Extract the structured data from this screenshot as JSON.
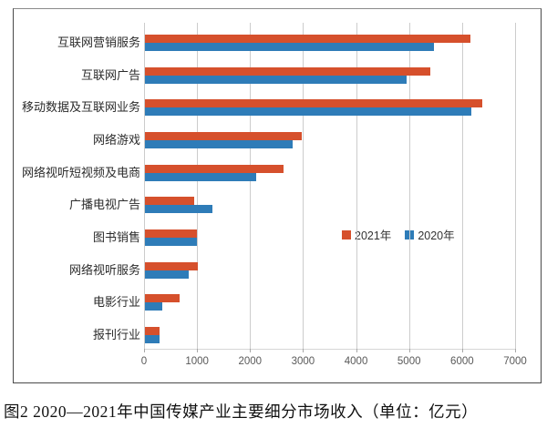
{
  "page": {
    "caption": "图2 2020—2021年中国传媒产业主要细分市场收入（单位：亿元）"
  },
  "legend": {
    "items": [
      {
        "label": "2021年",
        "color": "#d6502c"
      },
      {
        "label": "2020年",
        "color": "#2e7cb8"
      }
    ]
  },
  "chart_data": {
    "type": "bar",
    "orientation": "horizontal",
    "title": "图2 2020—2021年中国传媒产业主要细分市场收入（单位：亿元）",
    "unit": "亿元",
    "categories": [
      "互联网营销服务",
      "互联网广告",
      "移动数据及互联网业务",
      "网络游戏",
      "网络视听短视频及电商",
      "广播电视广告",
      "图书销售",
      "网络视听服务",
      "电影行业",
      "报刊行业"
    ],
    "series": [
      {
        "name": "2021年",
        "color": "#d6502c",
        "values": [
          6140,
          5390,
          6360,
          2950,
          2620,
          935,
          985,
          990,
          650,
          272
        ]
      },
      {
        "name": "2020年",
        "color": "#2e7cb8",
        "values": [
          5445,
          4930,
          6160,
          2780,
          2100,
          1270,
          980,
          830,
          320,
          280
        ]
      }
    ],
    "xlim": [
      0,
      7000
    ],
    "xticks": [
      0,
      1000,
      2000,
      3000,
      4000,
      5000,
      6000,
      7000
    ],
    "grid": "vertical",
    "legend_position": "middle-right",
    "colors": {
      "grid": "#cccccc",
      "axis_text": "#595959",
      "category_text": "#2b2b2b"
    }
  }
}
